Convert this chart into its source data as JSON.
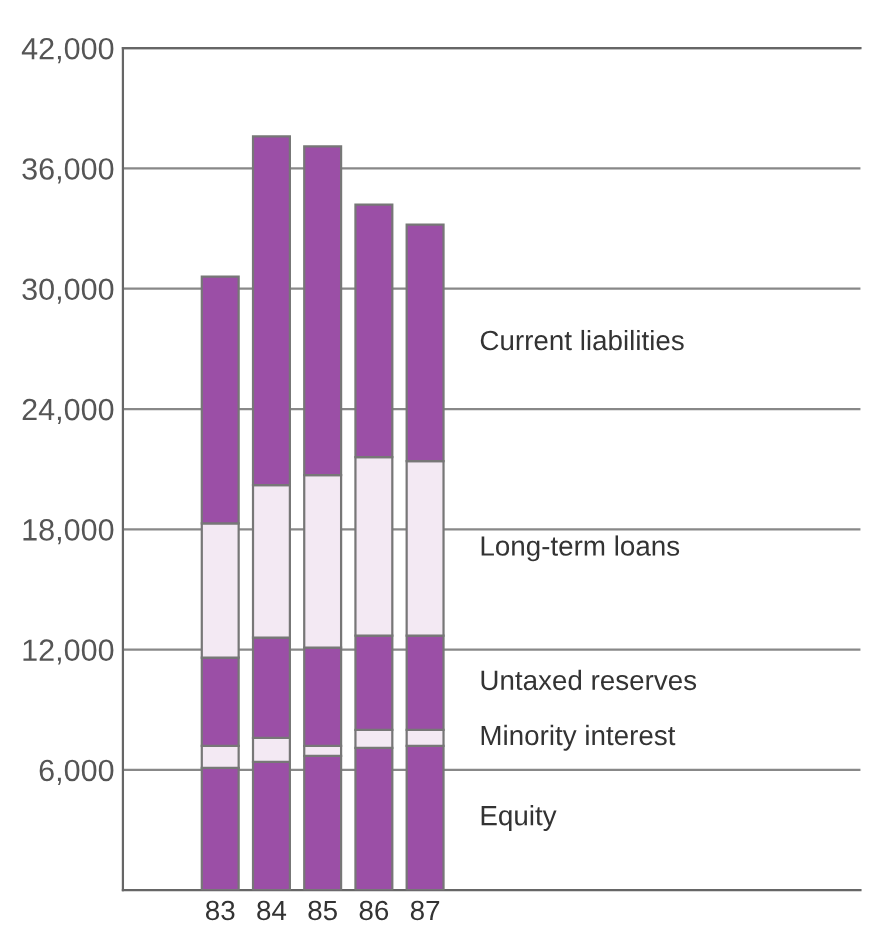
{
  "chart_data": {
    "type": "bar",
    "stacked": true,
    "categories": [
      "83",
      "84",
      "85",
      "86",
      "87"
    ],
    "series": [
      {
        "name": "Equity",
        "color": "#9b4fa6",
        "values": [
          6100,
          6400,
          6700,
          7100,
          7200
        ]
      },
      {
        "name": "Minority interest",
        "color": "#f3e9f3",
        "values": [
          1100,
          1200,
          500,
          900,
          800
        ]
      },
      {
        "name": "Untaxed reserves",
        "color": "#9b4fa6",
        "values": [
          4400,
          5000,
          4900,
          4700,
          4700
        ]
      },
      {
        "name": "Long-term loans",
        "color": "#f3e9f3",
        "values": [
          6700,
          7600,
          8600,
          8900,
          8700
        ]
      },
      {
        "name": "Current liabilities",
        "color": "#9b4fa6",
        "values": [
          12300,
          17400,
          16400,
          12600,
          11800
        ]
      }
    ],
    "ylim": [
      0,
      42000
    ],
    "yticks": [
      {
        "value": 0,
        "label": null
      },
      {
        "value": 6000,
        "label": "6,000"
      },
      {
        "value": 12000,
        "label": "12,000"
      },
      {
        "value": 18000,
        "label": "18,000"
      },
      {
        "value": 24000,
        "label": "24,000"
      },
      {
        "value": 30000,
        "label": "30,000"
      },
      {
        "value": 36000,
        "label": "36,000"
      },
      {
        "value": 42000,
        "label": "42,000"
      }
    ],
    "grid": "y"
  }
}
